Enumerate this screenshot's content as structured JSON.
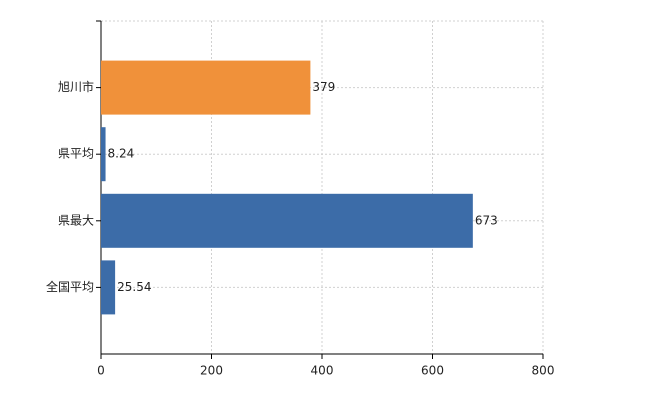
{
  "chart_data": {
    "type": "bar",
    "orientation": "horizontal",
    "categories": [
      "旭川市",
      "県平均",
      "県最大",
      "全国平均"
    ],
    "values": [
      379,
      8.24,
      673,
      25.54
    ],
    "colors": [
      "#f0913a",
      "#3c6ca8",
      "#3c6ca8",
      "#3c6ca8"
    ],
    "xlim": [
      0,
      800
    ],
    "xticks": [
      0,
      200,
      400,
      600,
      800
    ],
    "grid": true
  }
}
